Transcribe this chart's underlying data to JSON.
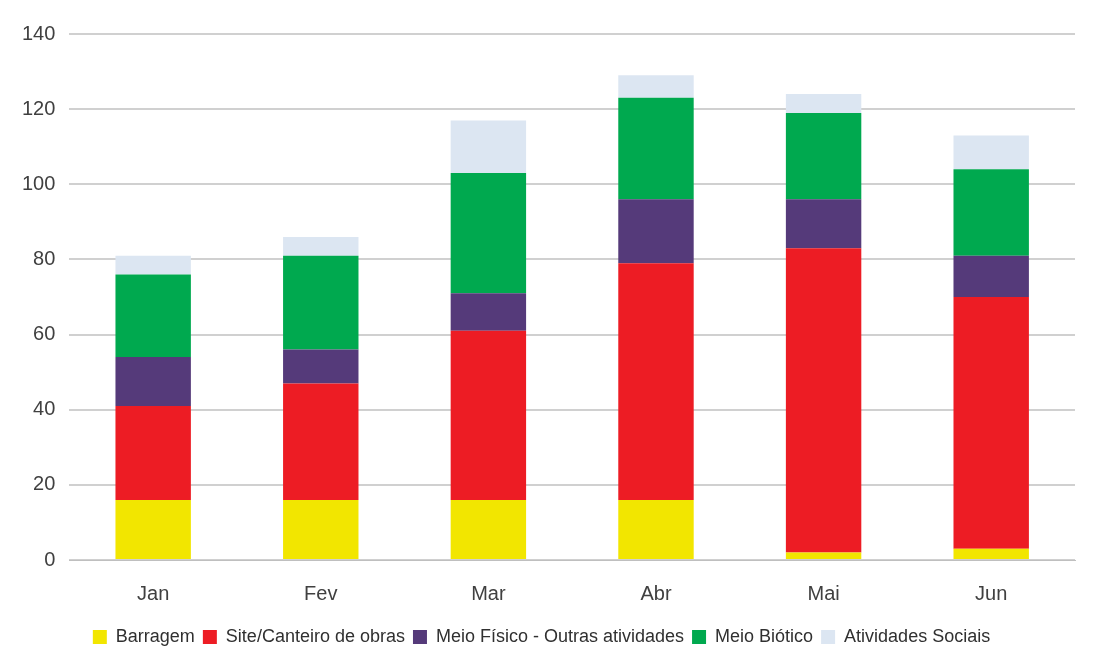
{
  "chart_data": {
    "type": "bar",
    "stacked": true,
    "categories": [
      "Jan",
      "Fev",
      "Mar",
      "Abr",
      "Mai",
      "Jun"
    ],
    "series": [
      {
        "name": "Barragem",
        "color": "#f2e600",
        "values": [
          16,
          16,
          16,
          16,
          2,
          3
        ]
      },
      {
        "name": "Site/Canteiro de obras",
        "color": "#ed1c24",
        "values": [
          25,
          31,
          45,
          63,
          81,
          67
        ]
      },
      {
        "name": "Meio Físico - Outras atividades",
        "color": "#553a7a",
        "values": [
          13,
          9,
          10,
          17,
          13,
          11
        ]
      },
      {
        "name": "Meio Biótico",
        "color": "#00a94f",
        "values": [
          22,
          25,
          32,
          27,
          23,
          23
        ]
      },
      {
        "name": "Atividades Sociais",
        "color": "#dce6f2",
        "values": [
          5,
          5,
          14,
          6,
          5,
          9
        ]
      }
    ],
    "ylim": [
      0,
      140
    ],
    "yticks": [
      0,
      20,
      40,
      60,
      80,
      100,
      120,
      140
    ],
    "grid": "y",
    "legend": "bottom"
  }
}
